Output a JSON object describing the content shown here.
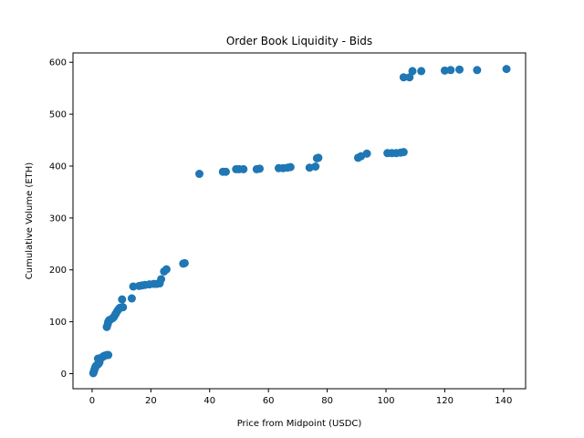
{
  "chart_data": {
    "type": "scatter",
    "title": "Order Book Liquidity - Bids",
    "xlabel": "Price from Midpoint (USDC)",
    "ylabel": "Cumulative Volume (ETH)",
    "xlim": [
      -6.5,
      147.5
    ],
    "ylim": [
      -29,
      618
    ],
    "xticks": [
      0,
      20,
      40,
      60,
      80,
      100,
      120,
      140
    ],
    "yticks": [
      0,
      100,
      200,
      300,
      400,
      500,
      600
    ],
    "grid": false,
    "legend": "none",
    "marker_color": "#1f77b4",
    "points": [
      [
        0.4,
        1
      ],
      [
        0.6,
        4
      ],
      [
        0.8,
        8
      ],
      [
        1.0,
        11
      ],
      [
        1.2,
        14
      ],
      [
        1.5,
        16
      ],
      [
        2.0,
        18
      ],
      [
        2.3,
        20
      ],
      [
        2.5,
        22
      ],
      [
        2.0,
        29
      ],
      [
        3.0,
        30
      ],
      [
        3.5,
        32
      ],
      [
        4.0,
        34
      ],
      [
        4.5,
        35
      ],
      [
        5.0,
        36
      ],
      [
        5.5,
        36
      ],
      [
        5.0,
        90
      ],
      [
        5.3,
        95
      ],
      [
        5.5,
        100
      ],
      [
        5.8,
        103
      ],
      [
        6.2,
        104
      ],
      [
        7.0,
        107
      ],
      [
        7.5,
        110
      ],
      [
        8.0,
        115
      ],
      [
        8.5,
        120
      ],
      [
        9.0,
        124
      ],
      [
        9.5,
        127
      ],
      [
        10.5,
        128
      ],
      [
        10.2,
        143
      ],
      [
        13.5,
        145
      ],
      [
        14.0,
        168
      ],
      [
        16.0,
        169
      ],
      [
        17.0,
        170
      ],
      [
        18.0,
        171
      ],
      [
        19.5,
        172
      ],
      [
        21.0,
        173
      ],
      [
        22.0,
        173
      ],
      [
        23.0,
        174
      ],
      [
        23.5,
        182
      ],
      [
        24.5,
        197
      ],
      [
        25.3,
        201
      ],
      [
        31.0,
        212
      ],
      [
        31.5,
        213
      ],
      [
        36.5,
        385
      ],
      [
        44.5,
        389
      ],
      [
        45.5,
        389
      ],
      [
        49.0,
        394
      ],
      [
        50.0,
        394
      ],
      [
        51.5,
        394
      ],
      [
        56.0,
        394
      ],
      [
        57.0,
        395
      ],
      [
        63.5,
        396
      ],
      [
        65.0,
        396
      ],
      [
        66.5,
        397
      ],
      [
        67.5,
        398
      ],
      [
        74.0,
        397
      ],
      [
        76.0,
        399
      ],
      [
        76.5,
        415
      ],
      [
        77.0,
        416
      ],
      [
        90.5,
        416
      ],
      [
        91.5,
        419
      ],
      [
        93.5,
        424
      ],
      [
        100.5,
        425
      ],
      [
        102.0,
        425
      ],
      [
        103.5,
        425
      ],
      [
        105.0,
        426
      ],
      [
        106.0,
        427
      ],
      [
        106.0,
        571
      ],
      [
        108.0,
        571
      ],
      [
        109.0,
        583
      ],
      [
        112.0,
        583
      ],
      [
        120.0,
        584
      ],
      [
        122.0,
        585
      ],
      [
        125.0,
        586
      ],
      [
        131.0,
        585
      ],
      [
        141.0,
        587
      ]
    ]
  }
}
